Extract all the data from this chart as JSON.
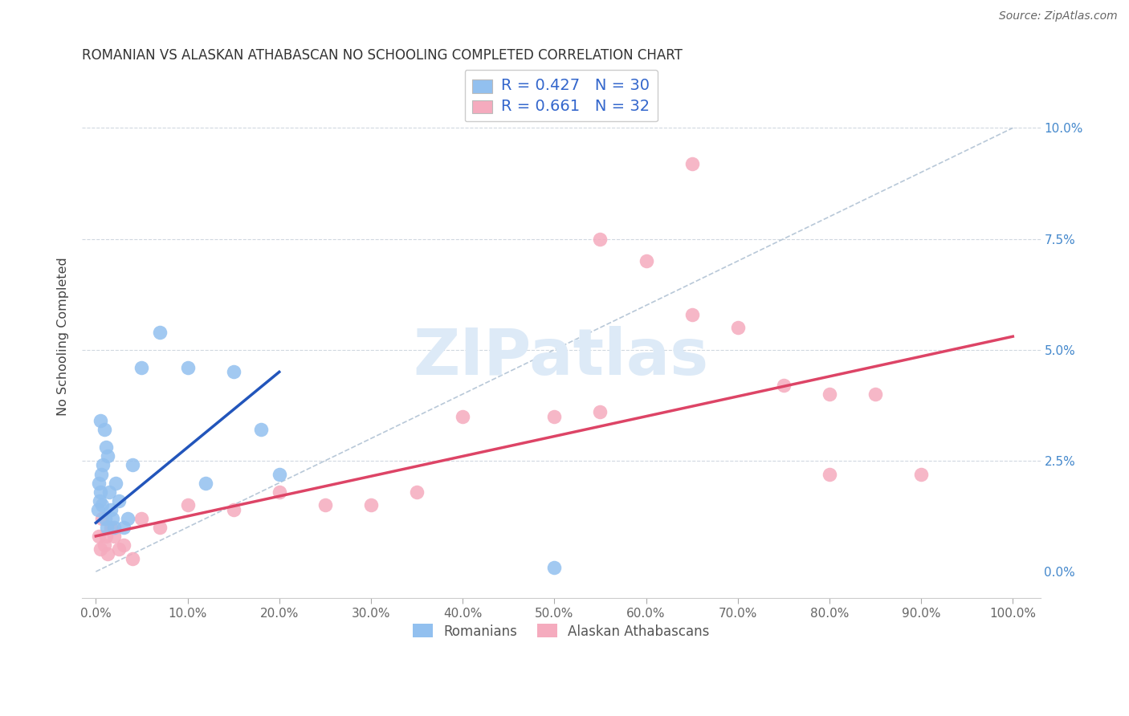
{
  "title": "ROMANIAN VS ALASKAN ATHABASCAN NO SCHOOLING COMPLETED CORRELATION CHART",
  "source": "Source: ZipAtlas.com",
  "ylabel": "No Schooling Completed",
  "watermark": "ZIPatlas",
  "legend_romanian_R": "0.427",
  "legend_romanian_N": "30",
  "legend_athabascan_R": "0.661",
  "legend_athabascan_N": "32",
  "romanian_color": "#92c0ef",
  "athabascan_color": "#f5abbe",
  "romanian_line_color": "#2255bb",
  "athabascan_line_color": "#dd4466",
  "diagonal_color": "#b8c8d8",
  "ytick_vals": [
    0,
    2.5,
    5.0,
    7.5,
    10.0
  ],
  "xtick_vals": [
    0,
    10,
    20,
    30,
    40,
    50,
    60,
    70,
    80,
    90,
    100
  ],
  "romanian_line_x": [
    0,
    20
  ],
  "romanian_line_y": [
    1.1,
    4.5
  ],
  "athabascan_line_x": [
    0,
    100
  ],
  "athabascan_line_y": [
    0.8,
    5.3
  ],
  "romanians_x": [
    0.2,
    0.3,
    0.4,
    0.5,
    0.6,
    0.7,
    0.8,
    0.9,
    1.0,
    1.1,
    1.2,
    1.3,
    1.5,
    1.6,
    1.8,
    2.0,
    2.2,
    2.5,
    3.0,
    3.5,
    4.0,
    5.0,
    7.0,
    10.0,
    12.0,
    15.0,
    18.0,
    20.0,
    0.5,
    50.0
  ],
  "romanians_y": [
    1.4,
    2.0,
    1.6,
    1.8,
    2.2,
    1.5,
    2.4,
    3.2,
    1.2,
    2.8,
    1.0,
    2.6,
    1.8,
    1.4,
    1.2,
    1.0,
    2.0,
    1.6,
    1.0,
    1.2,
    2.4,
    4.6,
    5.4,
    4.6,
    2.0,
    4.5,
    3.2,
    2.2,
    3.4,
    0.1
  ],
  "athabascans_x": [
    0.3,
    0.5,
    0.7,
    0.9,
    1.1,
    1.3,
    1.6,
    2.0,
    2.5,
    3.0,
    4.0,
    5.0,
    7.0,
    10.0,
    15.0,
    20.0,
    25.0,
    30.0,
    35.0,
    40.0,
    50.0,
    55.0,
    60.0,
    65.0,
    70.0,
    75.0,
    80.0,
    85.0,
    90.0,
    55.0,
    65.0,
    80.0
  ],
  "athabascans_y": [
    0.8,
    0.5,
    1.2,
    0.6,
    0.8,
    0.4,
    1.0,
    0.8,
    0.5,
    0.6,
    0.3,
    1.2,
    1.0,
    1.5,
    1.4,
    1.8,
    1.5,
    1.5,
    1.8,
    3.5,
    3.5,
    3.6,
    7.0,
    5.8,
    5.5,
    4.2,
    2.2,
    4.0,
    2.2,
    7.5,
    9.2,
    4.0
  ]
}
